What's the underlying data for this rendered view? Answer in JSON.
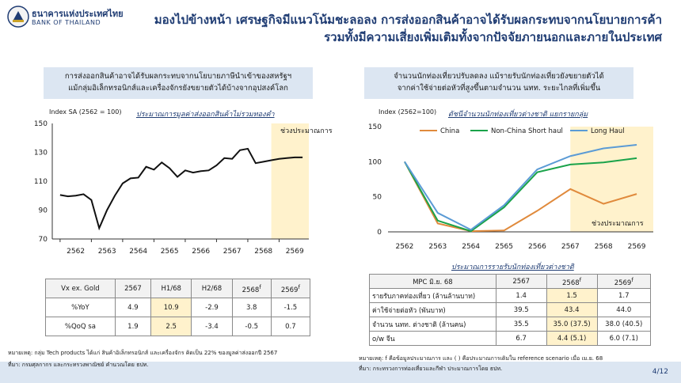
{
  "logo": {
    "thai": "ธนาคารแห่งประเทศไทย",
    "english": "BANK OF THAILAND"
  },
  "title": {
    "line1": "มองไปข้างหน้า เศรษฐกิจมีแนวโน้มชะลอลง การส่งออกสินค้าอาจได้รับผลกระทบจากนโยบายการค้า",
    "line2": "รวมทั้งมีความเสี่ยงเพิ่มเติมทั้งจากปัจจัยภายนอกและภายในประเทศ"
  },
  "left": {
    "note": {
      "line1": "การส่งออกสินค้าอาจได้รับผลกระทบจากนโยบายภาษีนำเข้าของสหรัฐฯ",
      "line2": "แม้กลุ่มอิเล็กทรอนิกส์และเครื่องจักรยังขยายตัวได้บ้างจากอุปสงค์โลก"
    },
    "index_label": "Index SA (2562 = 100)",
    "chart_title": "ประมาณการมูลค่าส่งออกสินค้าไม่รวมทองคำ",
    "forecast_label": "ช่วงประมาณการ",
    "table": {
      "headers": [
        "Vx ex. Gold",
        "2567",
        "H1/68",
        "H2/68",
        "2568",
        "2569"
      ],
      "header_sup": [
        "",
        "",
        "",
        "",
        "f",
        "f"
      ],
      "rows": [
        {
          "label": "%YoY",
          "values": [
            "4.9",
            "10.9",
            "-2.9",
            "3.8",
            "-1.5"
          ]
        },
        {
          "label": "%QoQ sa",
          "values": [
            "1.9",
            "2.5",
            "-3.4",
            "-0.5",
            "0.7"
          ]
        }
      ]
    },
    "footnote": "หมายเหตุ: กลุ่ม Tech products ได้แก่ สินค้าอิเล็กทรอนิกส์ และเครื่องจักร คิดเป็น 22% ของมูลค่าส่งออกปี 2567",
    "source": "ที่มา: กรมศุลกากร และกระทรวงพาณิชย์ คำนวณโดย ธปท."
  },
  "right": {
    "note": {
      "line1": "จำนวนนักท่องเที่ยวปรับลดลง แม้รายรับนักท่องเที่ยวยังขยายตัวได้",
      "line2": "จากค่าใช้จ่ายต่อหัวที่สูงขึ้นตามจำนวน นทท. ระยะไกลที่เพิ่มขึ้น"
    },
    "index_label": "Index (2562=100)",
    "chart_title": "ดัชนีจำนวนนักท่องเที่ยวต่างชาติ แยกรายกลุ่ม",
    "forecast_label": "ช่วงประมาณการ",
    "table_title": "ประมาณการรายรับนักท่องเที่ยวต่างชาติ",
    "table": {
      "headers": [
        "MPC มิ.ย. 68",
        "2567",
        "2568",
        "2569"
      ],
      "header_sup": [
        "",
        "",
        "f",
        "f"
      ],
      "rows": [
        {
          "label": "รายรับภาคท่องเที่ยว (ล้านล้านบาท)",
          "values": [
            "1.4",
            "1.5",
            "1.7"
          ]
        },
        {
          "label": "ค่าใช้จ่ายต่อหัว (พันบาท)",
          "values": [
            "39.5",
            "43.4",
            "44.0"
          ]
        },
        {
          "label": "จำนวน นทท. ต่างชาติ (ล้านคน)",
          "values": [
            "35.5",
            "35.0",
            "38.0"
          ],
          "paren": [
            "",
            "(37.5)",
            "(40.5)"
          ]
        },
        {
          "label": "o/w จีน",
          "values": [
            "6.7",
            "4.4",
            "6.0"
          ],
          "paren": [
            "",
            "(5.1)",
            "(7.1)"
          ]
        }
      ]
    },
    "footnote": "หมายเหตุ: f คือข้อมูลประมาณการ และ ( ) คือประมาณการเดิมใน reference scenario เมื่อ เม.ย. 68",
    "source": "ที่มา: กระทรวงการท่องเที่ยวและกีฬา ประมาณการโดย ธปท."
  },
  "page_number": "4/12",
  "colors": {
    "navy": "#1f3c73",
    "forecast": "#fff2cc",
    "note_bg": "#dce6f2",
    "china": "#e08a3c",
    "non_china": "#1aa34a",
    "long_haul": "#5b9bd5"
  },
  "chart_data": [
    {
      "type": "line",
      "title": "ประมาณการมูลค่าส่งออกสินค้าไม่รวมทองคำ",
      "ylabel": "Index SA (2562 = 100)",
      "ylim": [
        70,
        150
      ],
      "yticks": [
        70,
        90,
        110,
        130,
        150
      ],
      "xticks": [
        "2562",
        "2563",
        "2564",
        "2565",
        "2566",
        "2567",
        "2568",
        "2569"
      ],
      "forecast_start": 2568.75,
      "series": [
        {
          "x": [
            2562.0,
            2562.25,
            2562.5,
            2562.75,
            2563.0,
            2563.25,
            2563.5,
            2563.75,
            2564.0,
            2564.25,
            2564.5,
            2564.75,
            2565.0,
            2565.25,
            2565.5,
            2565.75,
            2566.0,
            2566.25,
            2566.5,
            2566.75,
            2567.0,
            2567.25,
            2567.5,
            2567.75,
            2568.0,
            2568.25,
            2568.5,
            2568.75,
            2569.0,
            2569.25,
            2569.5,
            2569.75
          ],
          "y": [
            100.5,
            99.5,
            100,
            101,
            97,
            77.5,
            90,
            100,
            108.5,
            112,
            112.5,
            120,
            118,
            123,
            119,
            113,
            117.5,
            116,
            117,
            117.5,
            121,
            126,
            125.5,
            131.5,
            132.5,
            122.5,
            123.5,
            124.5,
            125.5,
            126,
            126.5,
            126.5
          ]
        }
      ]
    },
    {
      "type": "line",
      "title": "ดัชนีจำนวนนักท่องเที่ยวต่างชาติ แยกรายกลุ่ม",
      "ylabel": "Index (2562=100)",
      "ylim": [
        0,
        150
      ],
      "yticks": [
        0,
        50,
        100,
        150
      ],
      "x": [
        "2562",
        "2563",
        "2564",
        "2565",
        "2566",
        "2567",
        "2568",
        "2569"
      ],
      "forecast_start": "2568",
      "series": [
        {
          "name": "China",
          "values": [
            100,
            12,
            1,
            2,
            30,
            61,
            40,
            54
          ]
        },
        {
          "name": "Non-China Short haul",
          "values": [
            100,
            16,
            1,
            35,
            85,
            96,
            99,
            105
          ]
        },
        {
          "name": "Long Haul",
          "values": [
            100,
            27,
            3,
            38,
            89,
            108,
            119,
            124
          ]
        }
      ]
    }
  ]
}
